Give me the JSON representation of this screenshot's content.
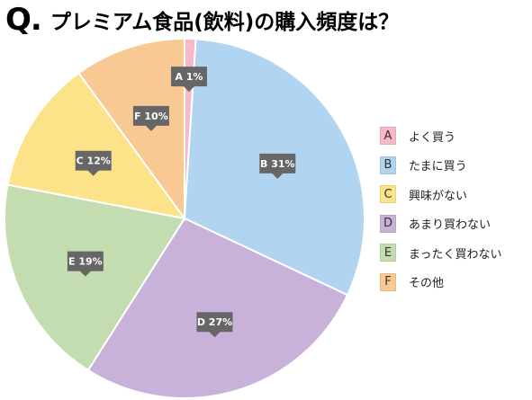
{
  "header": {
    "q_mark": "Q.",
    "title": "プレミアム食品(飲料)の購入頻度は？"
  },
  "legend": {
    "items": [
      {
        "key": "A",
        "label": "よく買う",
        "color": "#f7b8c7"
      },
      {
        "key": "B",
        "label": "たまに買う",
        "color": "#b1d4f0"
      },
      {
        "key": "C",
        "label": "興味がない",
        "color": "#fce38a"
      },
      {
        "key": "D",
        "label": "あまり買わない",
        "color": "#c9b2d9"
      },
      {
        "key": "E",
        "label": "まったく買わない",
        "color": "#c3ddb0"
      },
      {
        "key": "F",
        "label": "その他",
        "color": "#f9c994"
      }
    ]
  },
  "chart_data": {
    "type": "pie",
    "title": "プレミアム食品(飲料)の購入頻度は？",
    "order": "clockwise from top",
    "slices": [
      {
        "key": "A",
        "label": "A 1%",
        "value": 1,
        "color": "#f7b8c7"
      },
      {
        "key": "B",
        "label": "B 31%",
        "value": 31,
        "color": "#b1d4f0"
      },
      {
        "key": "D",
        "label": "D 27%",
        "value": 27,
        "color": "#c9b2d9"
      },
      {
        "key": "E",
        "label": "E 19%",
        "value": 19,
        "color": "#c3ddb0"
      },
      {
        "key": "C",
        "label": "C 12%",
        "value": 12,
        "color": "#fce38a"
      },
      {
        "key": "F",
        "label": "F 10%",
        "value": 10,
        "color": "#f9c994"
      }
    ],
    "data_label_style": {
      "background": "#666666",
      "text_color": "#ffffff"
    }
  }
}
